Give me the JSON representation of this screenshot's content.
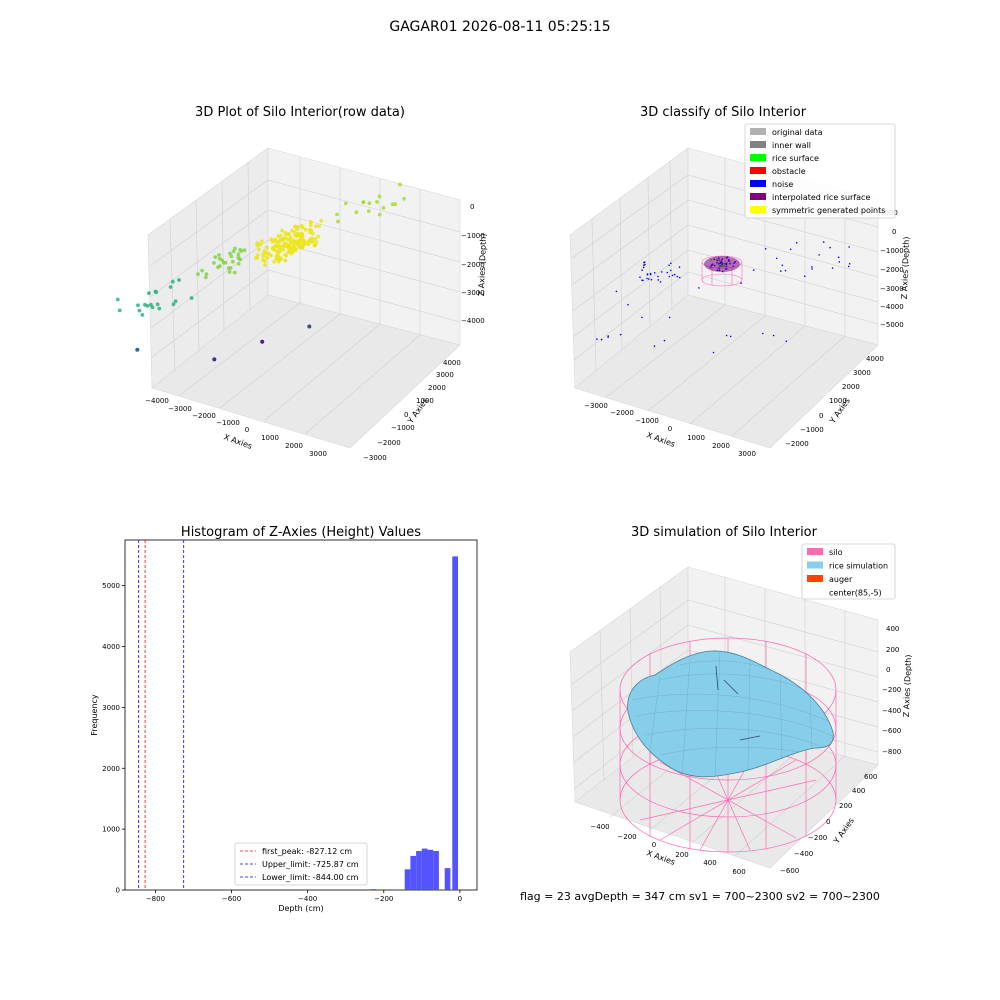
{
  "suptitle": "GAGAR01 2026-08-11 05:25:15",
  "footer": "flag = 23  avgDepth = 347 cm  sv1 = 700~2300  sv2 = 700~2300",
  "chart_data": [
    {
      "type": "scatter",
      "title": "3D Plot of Silo Interior(row data)",
      "xlabel": "X Axies",
      "ylabel": "Y Axies",
      "zlabel": "Z Axies (Depth)",
      "x_ticks": [
        "−4000",
        "−3000",
        "−2000",
        "−1000",
        "0",
        "1000",
        "2000",
        "3000"
      ],
      "y_ticks": [
        "−3000",
        "−2000",
        "−1000",
        "0",
        "1000",
        "2000",
        "3000",
        "4000"
      ],
      "z_ticks": [
        "0",
        "−1000",
        "−2000",
        "−3000",
        "−4000"
      ],
      "colormap": "viridis",
      "clusters": [
        {
          "name": "",
          "color": "#ece51b",
          "x_range": [
            500,
            1500
          ],
          "y_range": [
            -500,
            1500
          ],
          "z_range": [
            -1200,
            -2000
          ],
          "count": 160
        },
        {
          "name": "",
          "color": "#84d44b",
          "x_range": [
            -1500,
            -500
          ],
          "y_range": [
            -500,
            1000
          ],
          "z_range": [
            -1500,
            -2500
          ],
          "count": 30
        },
        {
          "name": "",
          "color": "#a8db34",
          "x_range": [
            1500,
            3200
          ],
          "y_range": [
            1000,
            3500
          ],
          "z_range": [
            -800,
            -1600
          ],
          "count": 16
        },
        {
          "name": "",
          "color": "#2db27d",
          "x_range": [
            -3500,
            -1800
          ],
          "y_range": [
            -2000,
            500
          ],
          "z_range": [
            -2200,
            -3200
          ],
          "count": 20
        }
      ],
      "outliers": [
        {
          "x": 2500,
          "y": -500,
          "z": -4200,
          "color": "#3e4a89"
        },
        {
          "x": 2200,
          "y": -2200,
          "z": -4000,
          "color": "#482677"
        },
        {
          "x": 800,
          "y": -2500,
          "z": -4300,
          "color": "#472d7b"
        },
        {
          "x": -2200,
          "y": -2000,
          "z": -3800,
          "color": "#31688e"
        }
      ]
    },
    {
      "type": "scatter",
      "title": "3D classify of Silo Interior",
      "xlabel": "X Axies",
      "ylabel": "Y Axies",
      "zlabel": "Z Axies (Depth)",
      "x_ticks": [
        "−3000",
        "−2000",
        "−1000",
        "0",
        "1000",
        "2000",
        "3000"
      ],
      "y_ticks": [
        "−2000",
        "−1000",
        "0",
        "1000",
        "2000",
        "3000",
        "4000"
      ],
      "z_ticks": [
        "1000",
        "0",
        "−1000",
        "−2000",
        "−3000",
        "−4000",
        "−5000"
      ],
      "legend": [
        {
          "label": "original data",
          "color": "#b0b0b0"
        },
        {
          "label": "inner wall",
          "color": "#808080"
        },
        {
          "label": "rice surface",
          "color": "#00ff00"
        },
        {
          "label": "obstacle",
          "color": "#ff0000"
        },
        {
          "label": "noise",
          "color": "#0000ff"
        },
        {
          "label": "interpolated rice surface",
          "color": "#800080"
        },
        {
          "label": "symmetric generated points",
          "color": "#ffff00"
        }
      ],
      "legend_loc": "upper right"
    },
    {
      "type": "bar",
      "title": "Histogram of Z-Axies (Height) Values",
      "xlabel": "Depth (cm)",
      "ylabel": "Frequency",
      "xlim": [
        -880,
        45
      ],
      "ylim": [
        0,
        5750
      ],
      "x_ticks": [
        -800,
        -600,
        -400,
        -200,
        0
      ],
      "y_ticks": [
        0,
        1000,
        2000,
        3000,
        4000,
        5000
      ],
      "bar_color": "#4b4bff",
      "bins": [
        {
          "x0": -235,
          "x1": -220,
          "count": 15
        },
        {
          "x0": -175,
          "x1": -160,
          "count": 10
        },
        {
          "x0": -145,
          "x1": -130,
          "count": 340
        },
        {
          "x0": -130,
          "x1": -115,
          "count": 560
        },
        {
          "x0": -115,
          "x1": -100,
          "count": 640
        },
        {
          "x0": -100,
          "x1": -85,
          "count": 680
        },
        {
          "x0": -85,
          "x1": -70,
          "count": 660
        },
        {
          "x0": -70,
          "x1": -55,
          "count": 640
        },
        {
          "x0": -55,
          "x1": -40,
          "count": 10
        },
        {
          "x0": -40,
          "x1": -25,
          "count": 360
        },
        {
          "x0": -20,
          "x1": -5,
          "count": 5480
        }
      ],
      "vlines": [
        {
          "label": "first_peak: -827.12 cm",
          "x": -827.12,
          "color": "#ff0000"
        },
        {
          "label": "Upper_limit: -725.87 cm",
          "x": -725.87,
          "color": "#0000ff"
        },
        {
          "label": "Lower_limit: -844.00 cm",
          "x": -844.0,
          "color": "#0000ff"
        }
      ],
      "legend_loc": "lower center"
    },
    {
      "type": "surface",
      "title": "3D simulation of Silo Interior",
      "xlabel": "X Axies",
      "ylabel": "Y Axies",
      "zlabel": "Z Axies (Depth)",
      "x_ticks": [
        "−400",
        "−200",
        "0",
        "200",
        "400",
        "600"
      ],
      "y_ticks": [
        "−600",
        "−400",
        "−200",
        "0",
        "200",
        "400",
        "600"
      ],
      "z_ticks": [
        "400",
        "200",
        "0",
        "−200",
        "−400",
        "−600",
        "−800"
      ],
      "legend": [
        {
          "label": "silo",
          "color": "#ff69b4"
        },
        {
          "label": "rice simulation",
          "color": "#87ceeb"
        },
        {
          "label": "auger",
          "color": "#ff4500"
        },
        {
          "label": "center(85,-5)",
          "color": ""
        }
      ],
      "legend_loc": "upper right"
    }
  ]
}
